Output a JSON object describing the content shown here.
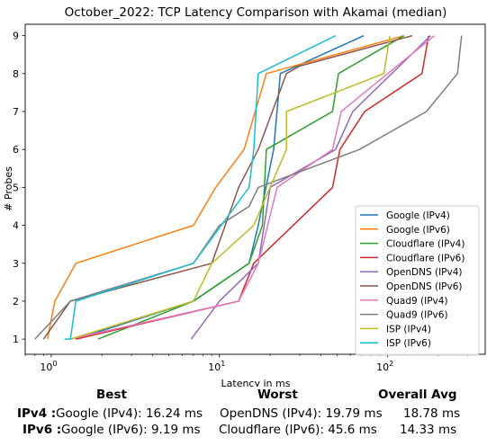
{
  "chart_data": {
    "type": "line",
    "title": "October_2022: TCP Latency Comparison with Akamai (median)",
    "xlabel": "Latency in ms",
    "ylabel": "# Probes",
    "xscale": "log",
    "xlim": [
      0.7,
      380
    ],
    "ylim": [
      0.6,
      9.3
    ],
    "xticks": [
      {
        "value": 1,
        "label": "10^0"
      },
      {
        "value": 10,
        "label": "10^1"
      },
      {
        "value": 100,
        "label": "10^2"
      }
    ],
    "yticks": [
      1,
      2,
      3,
      4,
      5,
      6,
      7,
      8,
      9
    ],
    "grid": false,
    "legend_position": "lower right",
    "series": [
      {
        "name": "Google (IPv4)",
        "color": "#1f77b4",
        "x": [
          1.4,
          7,
          15,
          17,
          21,
          23,
          72
        ],
        "y": [
          1,
          2,
          3,
          4,
          6,
          8,
          9
        ]
      },
      {
        "name": "Google (IPv6)",
        "color": "#ff7f0e",
        "x": [
          0.95,
          1.05,
          1.4,
          7,
          9.5,
          14,
          19,
          125
        ],
        "y": [
          1,
          2,
          3,
          4,
          5,
          6,
          8,
          9
        ]
      },
      {
        "name": "Cloudflare (IPv4)",
        "color": "#2ca02c",
        "x": [
          1.9,
          7,
          15,
          18,
          19,
          47,
          51,
          125
        ],
        "y": [
          1,
          2,
          3,
          4,
          6,
          7,
          8,
          9
        ]
      },
      {
        "name": "Cloudflare (IPv6)",
        "color": "#d62728",
        "x": [
          1.4,
          13,
          16,
          47,
          52,
          73,
          160,
          175
        ],
        "y": [
          1,
          2,
          3,
          5,
          6,
          7,
          8,
          9
        ]
      },
      {
        "name": "OpenDNS (IPv4)",
        "color": "#9467bd",
        "x": [
          6.8,
          10,
          17,
          20,
          49,
          62,
          180
        ],
        "y": [
          1,
          2,
          3,
          5,
          6,
          7,
          9
        ]
      },
      {
        "name": "OpenDNS (IPv6)",
        "color": "#8c564b",
        "x": [
          0.9,
          1.3,
          9,
          13,
          17,
          25,
          30,
          140
        ],
        "y": [
          1,
          2,
          3,
          5,
          6,
          8,
          8.2,
          9
        ]
      },
      {
        "name": "Quad9 (IPv4)",
        "color": "#e377c2",
        "x": [
          1.3,
          13,
          17,
          22,
          47,
          53,
          100,
          190
        ],
        "y": [
          1,
          2,
          3,
          5,
          6,
          7,
          8,
          9
        ]
      },
      {
        "name": "Quad9 (IPv6)",
        "color": "#7f7f7f",
        "x": [
          0.8,
          1.3,
          7,
          10,
          15,
          17,
          68,
          170,
          260,
          275
        ],
        "y": [
          1,
          2,
          3,
          4,
          4.5,
          5,
          6,
          7,
          8,
          9
        ]
      },
      {
        "name": "ISP (IPv4)",
        "color": "#bcbd22",
        "x": [
          1.3,
          7,
          9,
          16,
          25,
          25,
          95,
          103
        ],
        "y": [
          1,
          2,
          3,
          4,
          6,
          7,
          8,
          9
        ]
      },
      {
        "name": "ISP (IPv6)",
        "color": "#17becf",
        "x": [
          1.2,
          1.3,
          1.4,
          7,
          15,
          16,
          17,
          49
        ],
        "y": [
          1,
          1,
          2,
          3,
          5,
          6,
          8,
          9
        ]
      }
    ]
  },
  "summary": {
    "headers": {
      "best": "Best",
      "worst": "Worst",
      "avg": "Overall Avg"
    },
    "rows": [
      {
        "label": "IPv4 :",
        "best": "Google (IPv4): 16.24 ms",
        "worst": "OpenDNS (IPv4): 19.79 ms",
        "avg": "18.78 ms"
      },
      {
        "label": "IPv6 :",
        "best": "Google (IPv6): 9.19 ms",
        "worst": "Cloudflare (IPv6): 45.6 ms",
        "avg": "14.33 ms"
      }
    ]
  }
}
